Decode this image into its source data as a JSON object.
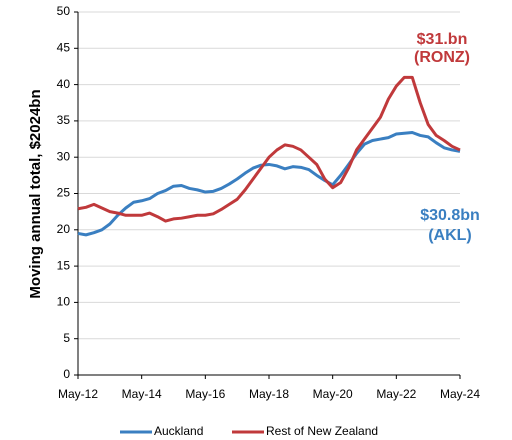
{
  "chart_data": {
    "type": "line",
    "y_label": "Moving annual total, $2024bn",
    "x": [
      "2012-05",
      "2012-08",
      "2012-11",
      "2013-02",
      "2013-05",
      "2013-08",
      "2013-11",
      "2014-02",
      "2014-05",
      "2014-08",
      "2014-11",
      "2015-02",
      "2015-05",
      "2015-08",
      "2015-11",
      "2016-02",
      "2016-05",
      "2016-08",
      "2016-11",
      "2017-02",
      "2017-05",
      "2017-08",
      "2017-11",
      "2018-02",
      "2018-05",
      "2018-08",
      "2018-11",
      "2019-02",
      "2019-05",
      "2019-08",
      "2019-11",
      "2020-02",
      "2020-05",
      "2020-08",
      "2020-11",
      "2021-02",
      "2021-05",
      "2021-08",
      "2021-11",
      "2022-02",
      "2022-05",
      "2022-08",
      "2022-11",
      "2023-02",
      "2023-05",
      "2023-08",
      "2023-11",
      "2024-02",
      "2024-05"
    ],
    "series": [
      {
        "name": "Auckland",
        "color": "#3a7fc1",
        "values": [
          19.5,
          19.3,
          19.6,
          20.0,
          20.8,
          22.0,
          23.0,
          23.8,
          24.0,
          24.3,
          25.0,
          25.4,
          26.0,
          26.1,
          25.7,
          25.5,
          25.2,
          25.3,
          25.7,
          26.3,
          27.0,
          27.8,
          28.5,
          28.9,
          29.0,
          28.8,
          28.4,
          28.7,
          28.6,
          28.3,
          27.5,
          26.8,
          26.2,
          27.5,
          29.0,
          30.5,
          31.8,
          32.3,
          32.5,
          32.7,
          33.2,
          33.3,
          33.4,
          33.0,
          32.8,
          32.0,
          31.3,
          31.0,
          30.8
        ]
      },
      {
        "name": "Rest of New Zealand",
        "color": "#c0393b",
        "values": [
          22.9,
          23.1,
          23.5,
          23.0,
          22.5,
          22.3,
          22.0,
          22.0,
          22.0,
          22.3,
          21.8,
          21.2,
          21.5,
          21.6,
          21.8,
          22.0,
          22.0,
          22.2,
          22.8,
          23.5,
          24.2,
          25.5,
          27.0,
          28.5,
          30.0,
          31.0,
          31.7,
          31.5,
          31.0,
          30.0,
          29.0,
          27.0,
          25.8,
          26.5,
          28.5,
          31.0,
          32.5,
          34.0,
          35.5,
          38.0,
          39.8,
          41.0,
          41.0,
          37.5,
          34.5,
          33.0,
          32.3,
          31.5,
          31.0
        ]
      }
    ],
    "xlim": [
      "2012-05",
      "2024-05"
    ],
    "xticks": [
      {
        "value": "2012-05",
        "label": "May-12"
      },
      {
        "value": "2014-05",
        "label": "May-14"
      },
      {
        "value": "2016-05",
        "label": "May-16"
      },
      {
        "value": "2018-05",
        "label": "May-18"
      },
      {
        "value": "2020-05",
        "label": "May-20"
      },
      {
        "value": "2022-05",
        "label": "May-22"
      },
      {
        "value": "2024-05",
        "label": "May-24"
      }
    ],
    "ylim": [
      0,
      50
    ],
    "yticks": [
      0,
      5,
      10,
      15,
      20,
      25,
      30,
      35,
      40,
      45,
      50
    ],
    "grid": true,
    "annotations": [
      {
        "text": "$31.bn",
        "color": "#c0393b"
      },
      {
        "text": "(RONZ)",
        "color": "#c0393b"
      },
      {
        "text": "$30.8bn",
        "color": "#3a7fc1"
      },
      {
        "text": "(AKL)",
        "color": "#3a7fc1"
      }
    ],
    "legend": "bottom"
  }
}
